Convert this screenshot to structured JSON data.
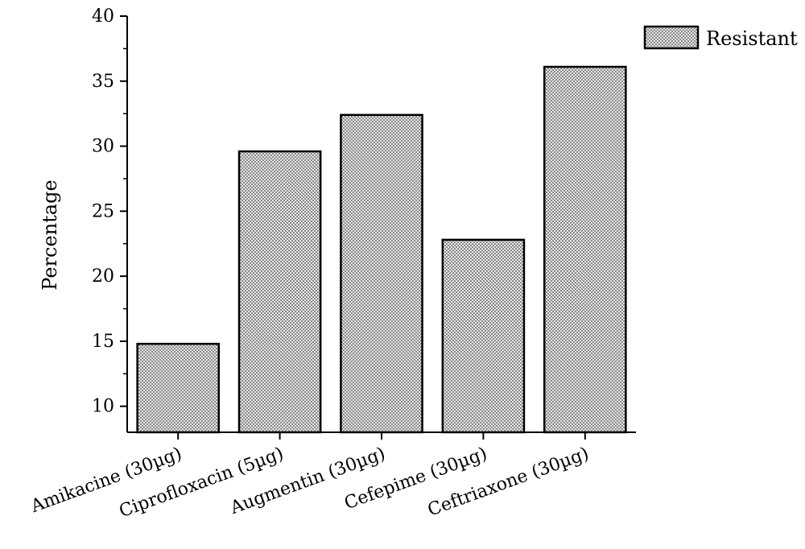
{
  "chart_data": {
    "type": "bar",
    "categories": [
      "Amikacine (30µg)",
      "Ciprofloxacin (5µg)",
      "Augmentin (30µg)",
      "Cefepime (30µg)",
      "Ceftriaxone (30µg)"
    ],
    "series": [
      {
        "name": "Resistant",
        "values": [
          14.8,
          29.6,
          32.4,
          22.8,
          36.1
        ]
      }
    ],
    "title": "",
    "xlabel": "",
    "ylabel": "Percentage",
    "ylim": [
      8,
      40
    ],
    "yticks": [
      10,
      15,
      20,
      25,
      30,
      35,
      40
    ],
    "grid": false,
    "legend": "top-right",
    "bar_fill": "#c8c8c8",
    "bar_stroke": "#000000"
  }
}
